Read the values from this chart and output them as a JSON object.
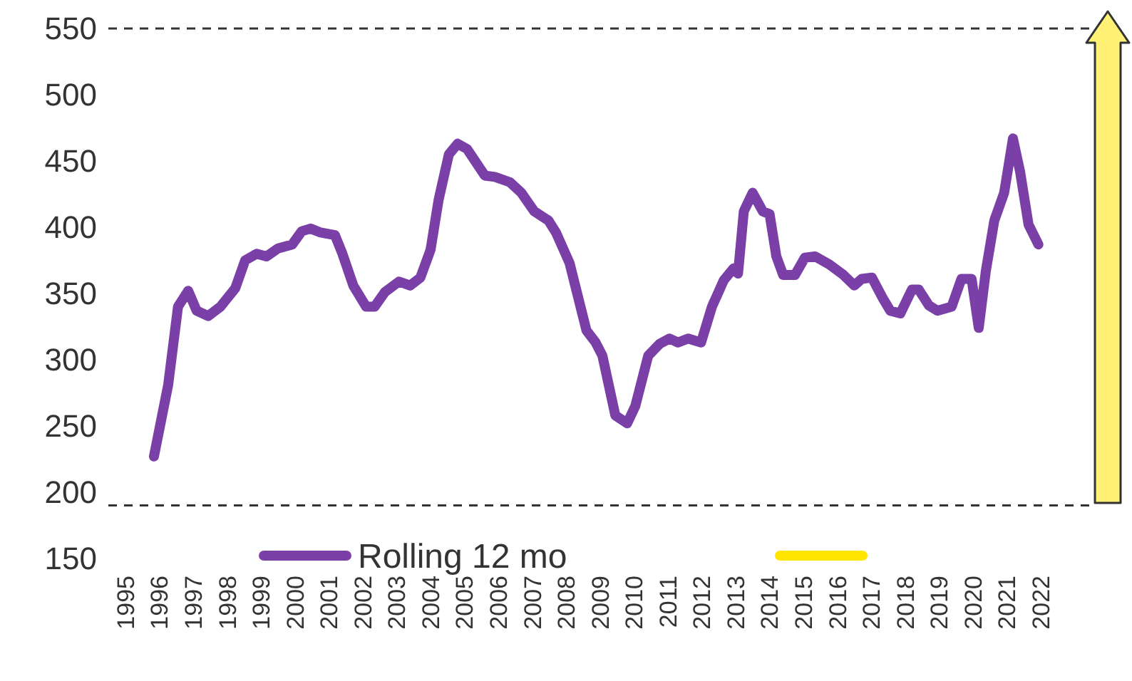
{
  "chart_data": {
    "type": "line",
    "xlim": [
      1995,
      2022
    ],
    "xticks": [
      1995,
      1996,
      1997,
      1998,
      1999,
      2000,
      2001,
      2002,
      2003,
      2004,
      2005,
      2006,
      2007,
      2008,
      2009,
      2010,
      2011,
      2012,
      2013,
      2014,
      2015,
      2016,
      2017,
      2018,
      2019,
      2020,
      2021,
      2022
    ],
    "ylim": [
      150,
      550
    ],
    "yticks": [
      150,
      200,
      250,
      300,
      350,
      400,
      450,
      500,
      550
    ],
    "grid": false,
    "legend": "bottom",
    "line_style": "solid",
    "marker": "none",
    "ref_lines": [
      {
        "axis": "y",
        "value": 550,
        "color": "#333333",
        "line_style": "dashed"
      },
      {
        "axis": "y",
        "value": 190,
        "color": "#333333",
        "line_style": "dashed"
      }
    ],
    "series": [
      {
        "name": "Rolling 12 mo",
        "color": "#7b3fa8",
        "x": [
          1995.84,
          1996.26,
          1996.55,
          1996.85,
          1997.1,
          1997.44,
          1997.8,
          1998.24,
          1998.53,
          1998.87,
          1999.16,
          1999.5,
          1999.92,
          2000.2,
          2000.46,
          2000.76,
          2001.18,
          2001.4,
          2001.72,
          2002.1,
          2002.35,
          2002.65,
          2003.07,
          2003.4,
          2003.7,
          2004,
          2004.24,
          2004.54,
          2004.8,
          2005.08,
          2005.6,
          2005.9,
          2006.34,
          2006.68,
          2007.06,
          2007.48,
          2007.7,
          2008.1,
          2008.6,
          2008.87,
          2009.07,
          2009.45,
          2009.8,
          2010.04,
          2010.42,
          2010.76,
          2011.05,
          2011.3,
          2011.6,
          2011.98,
          2012.3,
          2012.65,
          2012.94,
          2013.07,
          2013.24,
          2013.5,
          2013.8,
          2014,
          2014.2,
          2014.4,
          2014.75,
          2015.04,
          2015.34,
          2015.76,
          2016.18,
          2016.5,
          2016.72,
          2017.02,
          2017.35,
          2017.56,
          2017.86,
          2018.2,
          2018.4,
          2018.7,
          2018.95,
          2019.37,
          2019.66,
          2019.96,
          2020.17,
          2020.38,
          2020.63,
          2020.92,
          2021.18,
          2021.39,
          2021.64,
          2021.93
        ],
        "values": [
          227,
          281,
          340,
          352,
          337,
          333,
          340,
          354,
          375,
          380,
          378,
          384,
          387,
          397,
          399,
          396,
          394,
          380,
          356,
          340,
          340,
          351,
          359,
          356,
          362,
          383,
          421,
          455,
          463,
          459,
          439,
          438,
          434,
          426,
          412,
          405,
          396,
          373,
          322,
          313,
          303,
          258,
          252,
          265,
          303,
          312,
          316,
          313,
          316,
          313,
          340,
          360,
          369,
          365,
          412,
          426,
          412,
          410,
          378,
          364,
          364,
          377,
          378,
          372,
          364,
          356,
          361,
          362,
          346,
          337,
          335,
          353,
          353,
          341,
          337,
          340,
          361,
          361,
          324,
          367,
          405,
          426,
          467,
          442,
          402,
          387
        ]
      }
    ]
  }
}
